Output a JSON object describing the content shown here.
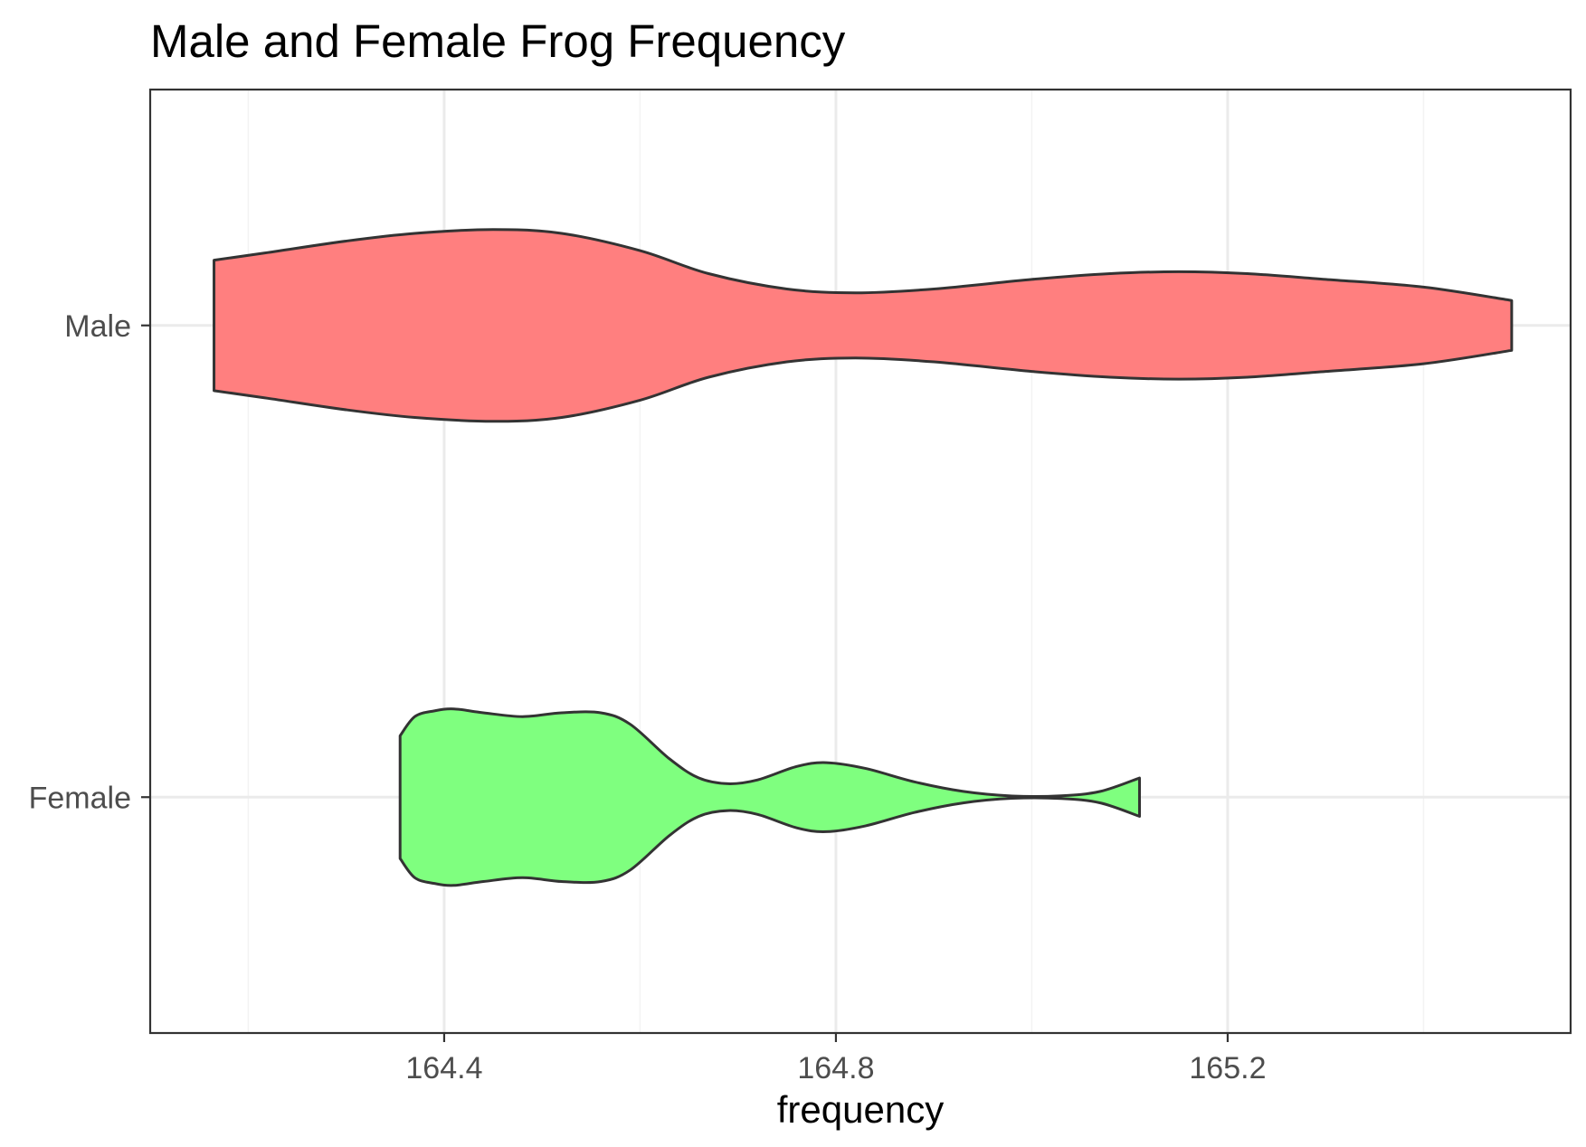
{
  "chart_data": {
    "type": "violin",
    "title": "Male and Female Frog Frequency",
    "xlabel": "frequency",
    "ylabel": "",
    "orientation": "horizontal",
    "xlim": [
      164.1,
      165.55
    ],
    "x_ticks": [
      164.4,
      164.8,
      165.2
    ],
    "x_tick_labels": [
      "164.4",
      "164.8",
      "165.2"
    ],
    "x_minor_gridlines": [
      164.2,
      164.6,
      165.0,
      165.4
    ],
    "categories": [
      "Male",
      "Female"
    ],
    "grid": true,
    "legend": "none",
    "colors": {
      "Male": "#ff7f7f",
      "Female": "#7fff7f",
      "outline": "#333333",
      "grid_major": "#ebebeb",
      "grid_minor": "#f3f3f3",
      "panel_border": "#333333"
    },
    "series": [
      {
        "name": "Male",
        "category": "Male",
        "profile": [
          [
            164.165,
            0.34
          ],
          [
            164.22,
            0.38
          ],
          [
            164.3,
            0.44
          ],
          [
            164.37,
            0.48
          ],
          [
            164.45,
            0.5
          ],
          [
            164.52,
            0.48
          ],
          [
            164.6,
            0.39
          ],
          [
            164.67,
            0.27
          ],
          [
            164.75,
            0.19
          ],
          [
            164.82,
            0.17
          ],
          [
            164.9,
            0.19
          ],
          [
            165.0,
            0.24
          ],
          [
            165.08,
            0.27
          ],
          [
            165.15,
            0.28
          ],
          [
            165.22,
            0.27
          ],
          [
            165.3,
            0.24
          ],
          [
            165.4,
            0.2
          ],
          [
            165.49,
            0.13
          ]
        ]
      },
      {
        "name": "Female",
        "category": "Female",
        "profile": [
          [
            164.355,
            0.32
          ],
          [
            164.37,
            0.42
          ],
          [
            164.39,
            0.45
          ],
          [
            164.41,
            0.46
          ],
          [
            164.44,
            0.44
          ],
          [
            164.48,
            0.42
          ],
          [
            164.52,
            0.44
          ],
          [
            164.56,
            0.44
          ],
          [
            164.59,
            0.38
          ],
          [
            164.63,
            0.2
          ],
          [
            164.66,
            0.1
          ],
          [
            164.69,
            0.07
          ],
          [
            164.72,
            0.09
          ],
          [
            164.76,
            0.16
          ],
          [
            164.79,
            0.18
          ],
          [
            164.83,
            0.15
          ],
          [
            164.88,
            0.08
          ],
          [
            164.93,
            0.03
          ],
          [
            164.98,
            0.006
          ],
          [
            165.03,
            0.007
          ],
          [
            165.07,
            0.03
          ],
          [
            165.11,
            0.1
          ]
        ]
      }
    ]
  }
}
